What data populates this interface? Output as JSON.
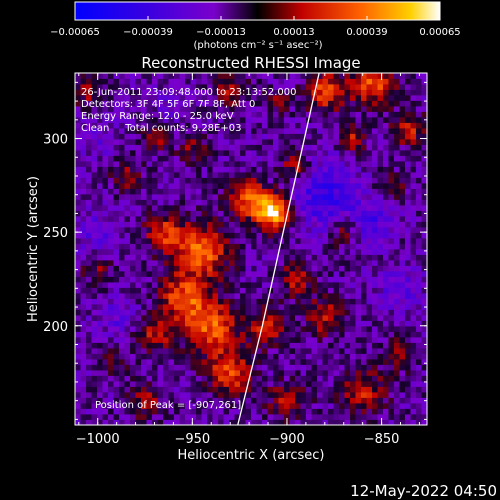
{
  "chart_data": {
    "type": "heatmap",
    "title": "Reconstructed RHESSI Image",
    "xlabel": "Heliocentric X (arcsec)",
    "ylabel": "Heliocentric Y (arcsec)",
    "xlim": [
      -1012,
      -826
    ],
    "ylim": [
      147,
      335
    ],
    "xticks": [
      -1000,
      -950,
      -900,
      -850
    ],
    "yticks": [
      200,
      250,
      300
    ],
    "xticklabels": [
      "−1000",
      "−950",
      "−900",
      "−850"
    ],
    "yticklabels": [
      "200",
      "250",
      "300"
    ],
    "colorbar": {
      "range": [
        -0.00065,
        0.00065
      ],
      "ticks": [
        -0.00065,
        -0.00039,
        -0.00013,
        0.00013,
        0.00039,
        0.00065
      ],
      "ticklabels": [
        "−0.00065",
        "−0.00039",
        "−0.00013",
        "0.00013",
        "0.00039",
        "0.00065"
      ],
      "unit_label": "(photons cm⁻² s⁻¹ asec⁻²)"
    },
    "annotations": [
      "26-Jun-2011 23:09:48.000 to 23:13:52.000",
      "Detectors: 3F 4F 5F 6F 7F 8F, Att 0",
      "Energy Range: 12.0 - 25.0 keV",
      "Clean     Total counts: 9.28E+03",
      "Position of Peak = [-907,261]"
    ],
    "peak": {
      "x": -907,
      "y": 261
    },
    "limb_curve": [
      {
        "x": -926,
        "y": 147
      },
      {
        "x": -913,
        "y": 200
      },
      {
        "x": -902,
        "y": 250
      },
      {
        "x": -893,
        "y": 290
      },
      {
        "x": -883,
        "y": 335
      }
    ],
    "hotspots": [
      {
        "x": -907,
        "y": 261,
        "r": 9,
        "v": 0.0007
      },
      {
        "x": -920,
        "y": 268,
        "r": 10,
        "v": 0.00045
      },
      {
        "x": -895,
        "y": 285,
        "r": 8,
        "v": 0.0003
      },
      {
        "x": -945,
        "y": 240,
        "r": 14,
        "v": 0.00048
      },
      {
        "x": -965,
        "y": 250,
        "r": 10,
        "v": 0.00035
      },
      {
        "x": -955,
        "y": 215,
        "r": 12,
        "v": 0.00042
      },
      {
        "x": -940,
        "y": 200,
        "r": 14,
        "v": 0.00045
      },
      {
        "x": -970,
        "y": 195,
        "r": 9,
        "v": 0.0003
      },
      {
        "x": -930,
        "y": 175,
        "r": 12,
        "v": 0.0004
      },
      {
        "x": -910,
        "y": 200,
        "r": 10,
        "v": 0.00032
      },
      {
        "x": -895,
        "y": 225,
        "r": 9,
        "v": 0.00028
      },
      {
        "x": -880,
        "y": 205,
        "r": 10,
        "v": 0.0003
      },
      {
        "x": -870,
        "y": 250,
        "r": 8,
        "v": 0.00022
      },
      {
        "x": -860,
        "y": 165,
        "r": 12,
        "v": 0.0003
      },
      {
        "x": -840,
        "y": 185,
        "r": 8,
        "v": 0.00025
      },
      {
        "x": -900,
        "y": 160,
        "r": 10,
        "v": 0.00026
      },
      {
        "x": -975,
        "y": 160,
        "r": 9,
        "v": 0.00025
      },
      {
        "x": -990,
        "y": 180,
        "r": 7,
        "v": 0.00018
      },
      {
        "x": -1000,
        "y": 230,
        "r": 8,
        "v": 0.0002
      },
      {
        "x": -985,
        "y": 280,
        "r": 8,
        "v": 0.00022
      },
      {
        "x": -970,
        "y": 300,
        "r": 7,
        "v": 0.00024
      },
      {
        "x": -950,
        "y": 295,
        "r": 8,
        "v": 0.0002
      },
      {
        "x": -930,
        "y": 325,
        "r": 9,
        "v": 0.00026
      },
      {
        "x": -880,
        "y": 325,
        "r": 10,
        "v": 0.0004
      },
      {
        "x": -855,
        "y": 330,
        "r": 12,
        "v": 0.00042
      },
      {
        "x": -835,
        "y": 305,
        "r": 9,
        "v": 0.0003
      },
      {
        "x": -865,
        "y": 300,
        "r": 7,
        "v": 0.00028
      },
      {
        "x": -845,
        "y": 275,
        "r": 7,
        "v": 0.0002
      },
      {
        "x": -905,
        "y": 320,
        "r": 6,
        "v": 0.0002
      },
      {
        "x": -1005,
        "y": 325,
        "r": 8,
        "v": 0.00022
      }
    ],
    "coldspots": [
      {
        "x": -880,
        "y": 270,
        "r": 18,
        "v": -0.00028
      },
      {
        "x": -855,
        "y": 255,
        "r": 10,
        "v": -0.00022
      },
      {
        "x": -1000,
        "y": 250,
        "r": 12,
        "v": -0.00015
      },
      {
        "x": -990,
        "y": 205,
        "r": 10,
        "v": -0.00014
      },
      {
        "x": -840,
        "y": 220,
        "r": 12,
        "v": -0.00016
      },
      {
        "x": -1000,
        "y": 300,
        "r": 10,
        "v": -0.00012
      },
      {
        "x": -960,
        "y": 320,
        "r": 9,
        "v": -0.00012
      }
    ],
    "grid": false,
    "colormap": [
      "#000000",
      "#0000ff",
      "#7a00cc",
      "#c00000",
      "#ff6000",
      "#ffc800",
      "#ffffff"
    ]
  },
  "timestamp": "12-May-2022 04:50"
}
